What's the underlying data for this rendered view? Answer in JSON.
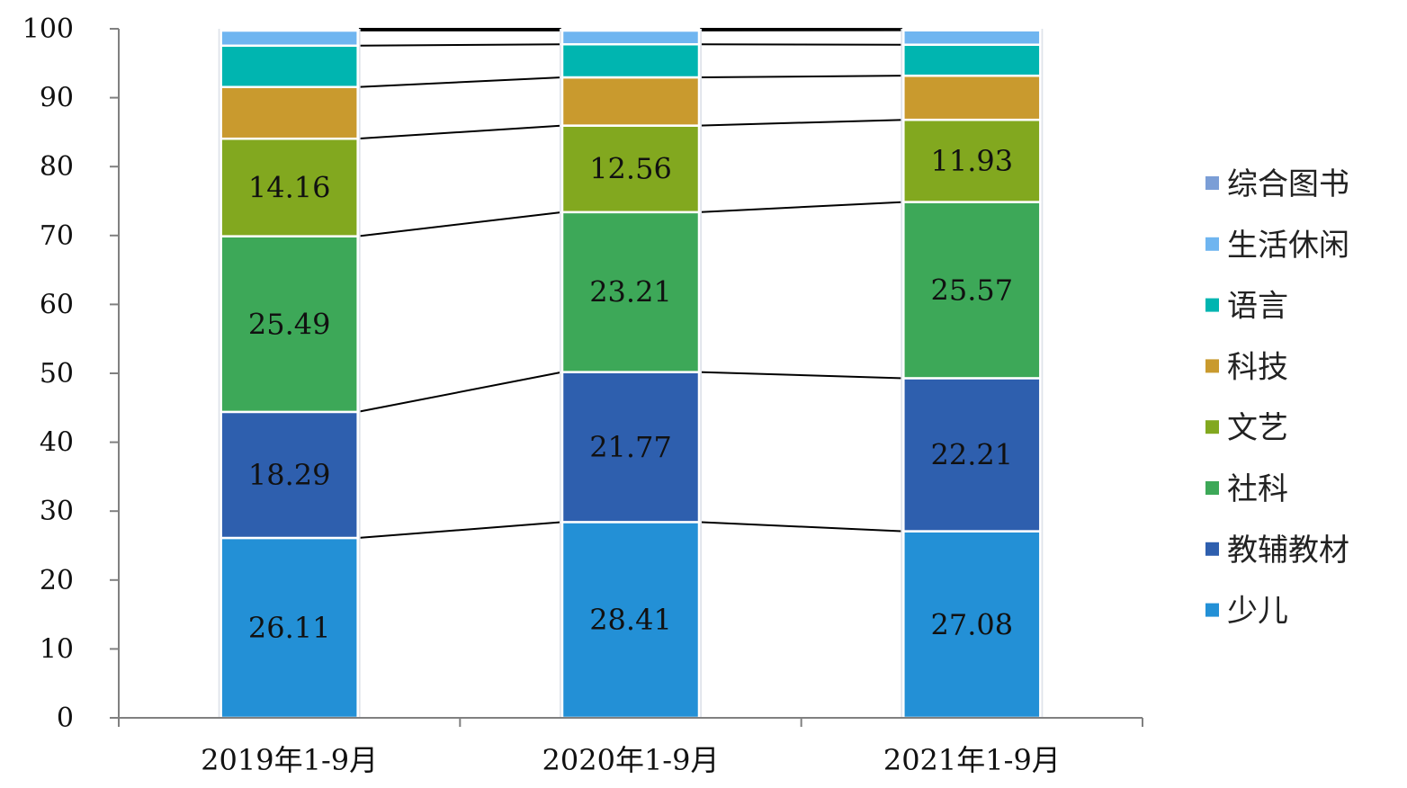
{
  "chart_data": {
    "type": "bar",
    "stacked": true,
    "categories": [
      "2019年1-9月",
      "2020年1-9月",
      "2021年1-9月"
    ],
    "ylim": [
      0,
      100
    ],
    "yticks": [
      "0",
      "10",
      "20",
      "30",
      "40",
      "50",
      "60",
      "70",
      "80",
      "90",
      "100"
    ],
    "legend_position": "right",
    "series": [
      {
        "name": "少儿",
        "color": "#2390D6",
        "values": [
          26.11,
          28.41,
          27.08
        ],
        "labels": [
          "26.11",
          "28.41",
          "27.08"
        ]
      },
      {
        "name": "教辅教材",
        "color": "#2E5FAE",
        "values": [
          18.29,
          21.77,
          22.21
        ],
        "labels": [
          "18.29",
          "21.77",
          "22.21"
        ]
      },
      {
        "name": "社科",
        "color": "#3DA858",
        "values": [
          25.49,
          23.21,
          25.57
        ],
        "labels": [
          "25.49",
          "23.21",
          "25.57"
        ]
      },
      {
        "name": "文艺",
        "color": "#82A81F",
        "values": [
          14.16,
          12.56,
          11.93
        ],
        "labels": [
          "14.16",
          "12.56",
          "11.93"
        ]
      },
      {
        "name": "科技",
        "color": "#C99A2E",
        "values": [
          7.5,
          7.0,
          6.4
        ],
        "labels": [
          "",
          "",
          ""
        ]
      },
      {
        "name": "语言",
        "color": "#00B5B0",
        "values": [
          6.0,
          4.8,
          4.5
        ],
        "labels": [
          "",
          "",
          ""
        ]
      },
      {
        "name": "生活休闲",
        "color": "#6FB5F0",
        "values": [
          2.2,
          2.0,
          2.1
        ],
        "labels": [
          "",
          "",
          ""
        ]
      },
      {
        "name": "综合图书",
        "color": "#7B9ED6",
        "values": [
          0.25,
          0.25,
          0.2
        ],
        "labels": [
          "",
          "",
          ""
        ]
      }
    ]
  }
}
